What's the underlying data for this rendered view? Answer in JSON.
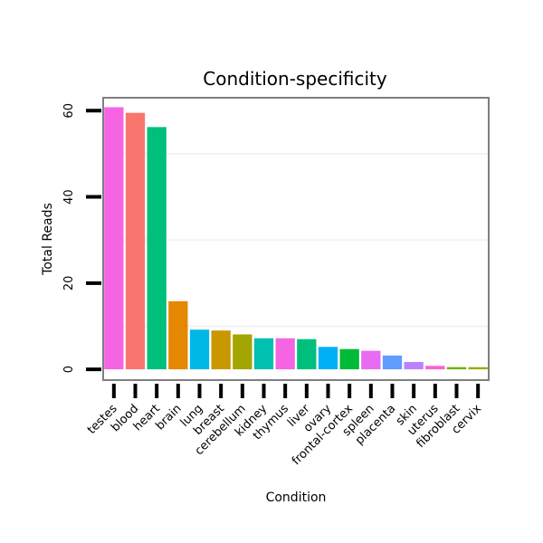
{
  "chart_data": {
    "type": "bar",
    "title": "Condition-specificity",
    "xlabel": "Condition",
    "ylabel": "Total Reads",
    "ylim": [
      -2.5,
      63
    ],
    "yticks": [
      0,
      20,
      40,
      60
    ],
    "grid": true,
    "categories": [
      "testes",
      "blood",
      "heart",
      "brain",
      "lung",
      "breast",
      "cerebellum",
      "kidney",
      "thymus",
      "liver",
      "ovary",
      "frontal-cortex",
      "spleen",
      "placenta",
      "skin",
      "uterus",
      "fibroblast",
      "cervix"
    ],
    "values": [
      60.8,
      59.5,
      56.2,
      15.8,
      9.2,
      9.0,
      8.1,
      7.2,
      7.2,
      7.0,
      5.2,
      4.7,
      4.3,
      3.2,
      1.7,
      0.8,
      0.5,
      0.5
    ],
    "colors": [
      "#F564E3",
      "#F8766D",
      "#00BF7D",
      "#E58700",
      "#00B8E5",
      "#C99800",
      "#A3A500",
      "#00C0AF",
      "#F564E3",
      "#00BF7D",
      "#00B0F6",
      "#00BA38",
      "#E76BF3",
      "#619CFF",
      "#B983FF",
      "#FD61D1",
      "#6BB100",
      "#A3A500"
    ]
  }
}
